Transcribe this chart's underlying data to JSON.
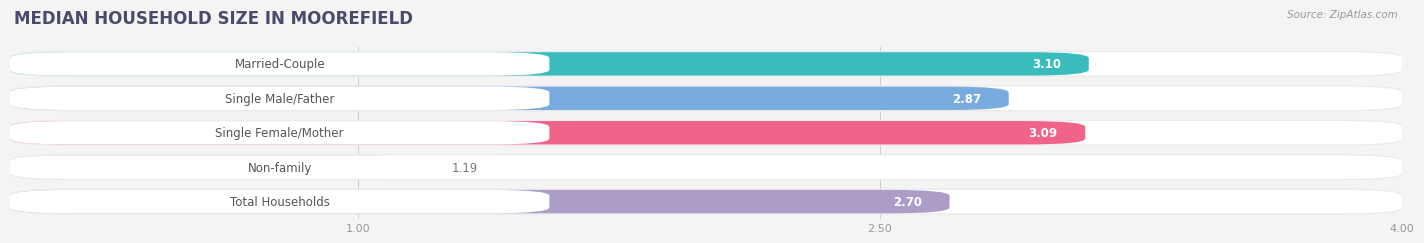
{
  "title": "MEDIAN HOUSEHOLD SIZE IN MOOREFIELD",
  "source": "Source: ZipAtlas.com",
  "categories": [
    "Married-Couple",
    "Single Male/Father",
    "Single Female/Mother",
    "Non-family",
    "Total Households"
  ],
  "values": [
    3.1,
    2.87,
    3.09,
    1.19,
    2.7
  ],
  "bar_colors": [
    "#3bbcbc",
    "#7aabdf",
    "#f0648a",
    "#f5c898",
    "#ac9cc8"
  ],
  "xlim": [
    0,
    4.0
  ],
  "xticks": [
    1.0,
    2.5,
    4.0
  ],
  "xtick_labels": [
    "1.00",
    "2.50",
    "4.00"
  ],
  "background_color": "#f4f4f4",
  "bar_bg_color": "#ffffff",
  "row_bg_color": "#ebebeb",
  "title_fontsize": 12,
  "label_fontsize": 8.5,
  "value_fontsize": 8.5,
  "bar_height": 0.68,
  "title_color": "#4a4a6a",
  "source_color": "#999999",
  "label_color": "#555555",
  "value_color": "#ffffff"
}
